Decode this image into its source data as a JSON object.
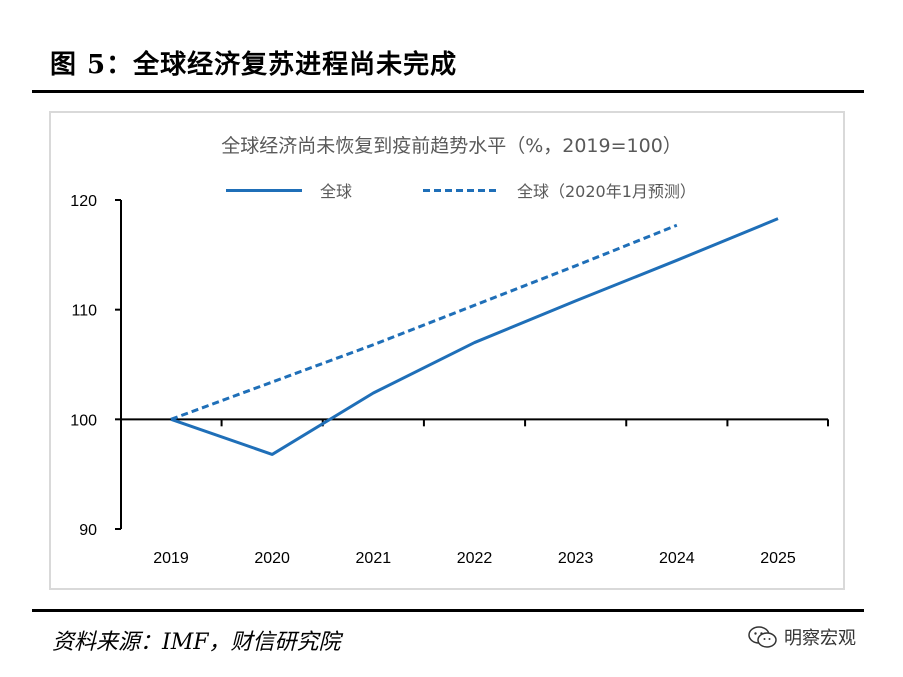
{
  "figure": {
    "title": "图 5：全球经济复苏进程尚未完成",
    "source": "资料来源：IMF，财信研究院",
    "watermark": "明察宏观",
    "watermark_icon": "wechat-icon"
  },
  "chart_data": {
    "type": "line",
    "title": "全球经济尚未恢复到疫前趋势水平（%，2019=100）",
    "xlabel": "",
    "ylabel": "",
    "x": [
      "2019",
      "2020",
      "2021",
      "2022",
      "2023",
      "2024",
      "2025"
    ],
    "ylim": [
      90,
      120
    ],
    "yticks": [
      90,
      100,
      110,
      120
    ],
    "grid": false,
    "legend_position": "top",
    "series": [
      {
        "name": "全球",
        "style": "solid",
        "color": "#1f6fb8",
        "points": [
          {
            "x": 2019,
            "y": 100.0
          },
          {
            "x": 2020,
            "y": 96.8
          },
          {
            "x": 2021,
            "y": 102.4
          },
          {
            "x": 2022,
            "y": 107.0
          },
          {
            "x": 2023,
            "y": 110.8
          },
          {
            "x": 2024,
            "y": 114.5
          },
          {
            "x": 2025,
            "y": 118.3
          }
        ]
      },
      {
        "name": "全球（2020年1月预测）",
        "style": "dashed",
        "color": "#1f6fb8",
        "points": [
          {
            "x": 2019,
            "y": 100.0
          },
          {
            "x": 2020,
            "y": 103.4
          },
          {
            "x": 2021,
            "y": 106.8
          },
          {
            "x": 2022,
            "y": 110.4
          },
          {
            "x": 2023,
            "y": 114.0
          },
          {
            "x": 2024,
            "y": 117.7
          }
        ]
      }
    ]
  }
}
